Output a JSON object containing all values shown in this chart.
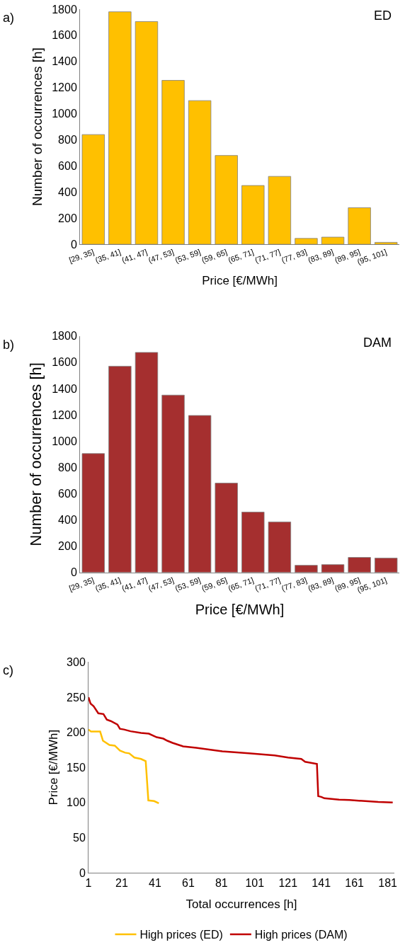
{
  "chart_data": [
    {
      "type": "bar",
      "categories": [
        "[29, 35]",
        "(35, 41]",
        "(41, 47]",
        "(47, 53]",
        "(53, 59]",
        "(59, 65]",
        "(65, 71]",
        "(71, 77]",
        "(77, 83]",
        "(83, 89]",
        "(89, 95]",
        "(95, 101]"
      ],
      "values": [
        840,
        1780,
        1705,
        1255,
        1100,
        680,
        450,
        520,
        45,
        55,
        280,
        15
      ],
      "color": "#ffc000",
      "ylim": [
        0,
        1800
      ],
      "yticks": [
        0,
        200,
        400,
        600,
        800,
        1000,
        1200,
        1400,
        1600,
        1800
      ],
      "xlabel": "Price [€/MWh]",
      "ylabel": "Number of occurrences [h]",
      "annotations": [
        "a)",
        "ED"
      ],
      "legend": false
    },
    {
      "type": "bar",
      "categories": [
        "[29, 35]",
        "(35, 41]",
        "(41, 47]",
        "(47, 53]",
        "(53, 59]",
        "(59, 65]",
        "(65, 71]",
        "(71, 77]",
        "(77, 83]",
        "(83, 89]",
        "(89, 95]",
        "(95, 101]"
      ],
      "values": [
        905,
        1570,
        1675,
        1350,
        1195,
        680,
        460,
        385,
        55,
        60,
        115,
        110
      ],
      "color": "#a52f2f",
      "ylim": [
        0,
        1800
      ],
      "yticks": [
        0,
        200,
        400,
        600,
        800,
        1000,
        1200,
        1400,
        1600,
        1800
      ],
      "xlabel": "Price [€/MWh]",
      "ylabel": "Number of occurrences [h]",
      "annotations": [
        "b)",
        "DAM"
      ],
      "legend": false
    },
    {
      "type": "line",
      "xlim": [
        1,
        185
      ],
      "xticks": [
        1,
        21,
        41,
        61,
        81,
        101,
        121,
        141,
        161,
        181
      ],
      "ylim": [
        0,
        300
      ],
      "yticks": [
        0,
        50,
        100,
        150,
        200,
        250,
        300
      ],
      "xlabel": "Total occurrences [h]",
      "ylabel": "Price [€/MWh]",
      "annotations": [
        "c)"
      ],
      "legend": "bottom",
      "marker": "none",
      "series": [
        {
          "name": "High prices (ED)",
          "color": "#ffc000",
          "x": [
            1,
            2.5,
            8,
            9.7,
            13.6,
            16.8,
            19.9,
            23,
            25.5,
            28.6,
            32.6,
            35.4,
            37,
            40.5,
            43.3
          ],
          "values": [
            204,
            201,
            201,
            188,
            182,
            181,
            174,
            171,
            170,
            164,
            162,
            159,
            103,
            102,
            99
          ]
        },
        {
          "name": "High prices (DAM)",
          "color": "#c00000",
          "x": [
            1,
            2.2,
            4.1,
            6.9,
            10,
            12,
            14.4,
            18.4,
            19.9,
            22.3,
            26.3,
            32.6,
            37.3,
            42,
            46,
            48.4,
            51.5,
            57.9,
            65.8,
            73.6,
            81.5,
            97.4,
            113,
            121,
            129,
            131.3,
            138.4,
            139.2,
            141,
            142.9,
            151.7,
            158,
            167.5,
            175.3,
            184
          ],
          "values": [
            250,
            241,
            237,
            227,
            226,
            218,
            216,
            211,
            205,
            204,
            201.5,
            199,
            198,
            193,
            191,
            188,
            185,
            180,
            178,
            175.5,
            173,
            170,
            167,
            164,
            162,
            158,
            155,
            109,
            108,
            106,
            104,
            103.6,
            102,
            100.7,
            100
          ]
        }
      ]
    }
  ]
}
